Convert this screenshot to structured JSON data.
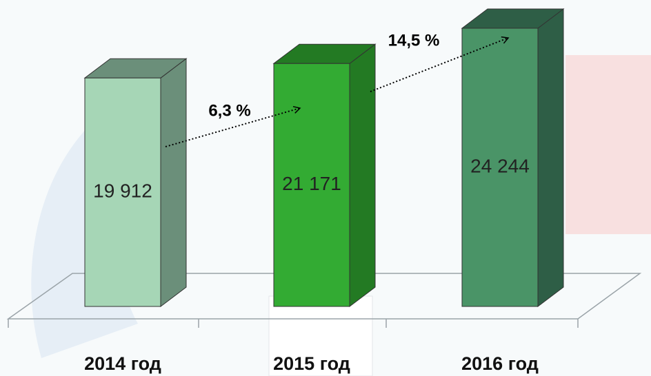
{
  "chart_data": {
    "type": "bar3d",
    "categories": [
      "2014 год",
      "2015 год",
      "2016 год"
    ],
    "values": [
      19912,
      21171,
      24244
    ],
    "value_labels": [
      "19 912",
      "21 171",
      "24 244"
    ],
    "colors": [
      "#a6d6b6",
      "#33ab33",
      "#4a9467"
    ],
    "side_colors": [
      "#6b8f7a",
      "#237a23",
      "#2e5e46"
    ],
    "annotations": [
      "6,3 %",
      "14,5 %"
    ]
  }
}
